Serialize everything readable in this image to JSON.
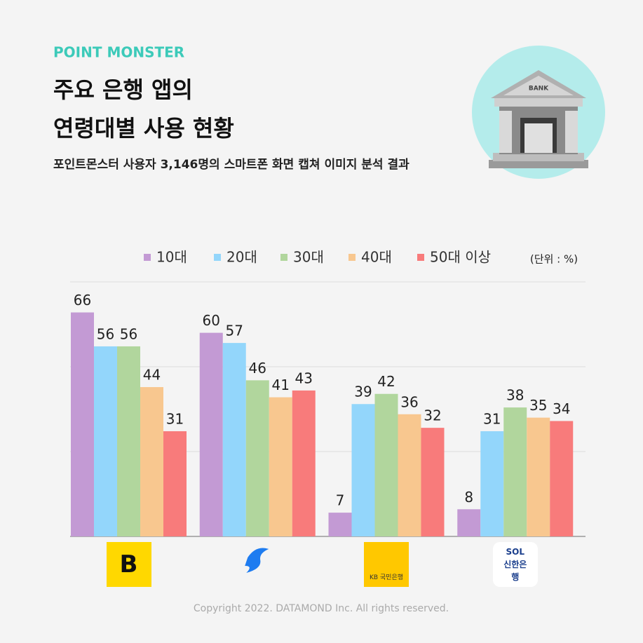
{
  "header": {
    "brand": "POINT MONSTER",
    "title_lines": [
      "주요 은행 앱의",
      "연령대별 사용 현황"
    ],
    "subtitle": "포인트몬스터 사용자 3,146명의 스마트폰 화면 캡쳐 이미지 분석 결과",
    "illustration_label": "BANK"
  },
  "chart_data": {
    "type": "bar",
    "categories": [
      "B",
      null,
      "KB 국민은행",
      "SOL 신한은행"
    ],
    "unit_label": "(단위 : %)",
    "series": [
      {
        "name": "10대",
        "color": "#c39ad4",
        "values": [
          66,
          60,
          7,
          8
        ]
      },
      {
        "name": "20대",
        "color": "#93d6fb",
        "values": [
          56,
          57,
          39,
          31
        ]
      },
      {
        "name": "30대",
        "color": "#b1d69d",
        "values": [
          56,
          46,
          42,
          38
        ]
      },
      {
        "name": "40대",
        "color": "#f8c78f",
        "values": [
          44,
          41,
          36,
          35
        ]
      },
      {
        "name": "50대 이상",
        "color": "#f87b7b",
        "values": [
          31,
          43,
          32,
          34
        ]
      }
    ],
    "ylim": [
      0,
      75
    ],
    "yticks": [
      0,
      25,
      50,
      75
    ],
    "grid": true,
    "legend": "top"
  },
  "footer": "Copyright 2022. DATAMOND Inc. All rights reserved."
}
